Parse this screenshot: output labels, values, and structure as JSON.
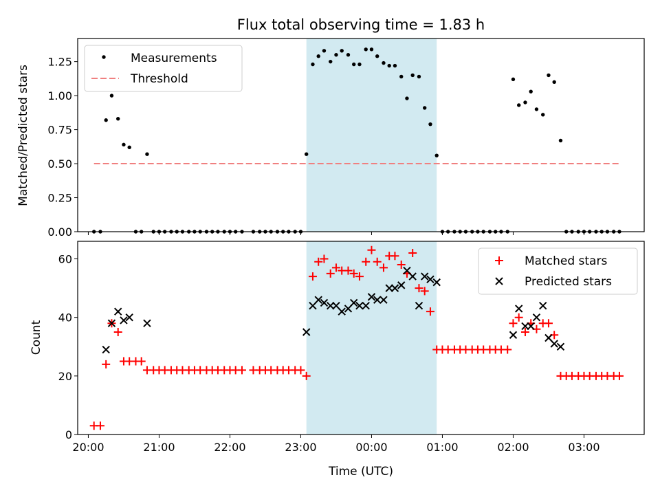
{
  "chart_data": {
    "type": "scatter",
    "title": "Flux total observing time = 1.83 h",
    "xlabel": "Time (UTC)",
    "x_unit": "hours",
    "xlim": [
      19.85,
      27.85
    ],
    "xtick_values": [
      20,
      21,
      22,
      23,
      24,
      25,
      26,
      27
    ],
    "xtick_labels": [
      "20:00",
      "21:00",
      "22:00",
      "23:00",
      "00:00",
      "01:00",
      "02:00",
      "03:00"
    ],
    "highlight_band": [
      23.08,
      24.92
    ],
    "colors": {
      "measurements": "#000000",
      "threshold": "#f08080",
      "matched": "#ff0000",
      "predicted": "#000000",
      "band": "#add8e6"
    },
    "top_panel": {
      "ylabel": "Matched/Predicted stars",
      "ylim": [
        0,
        1.42
      ],
      "ytick_values": [
        0,
        0.25,
        0.5,
        0.75,
        1.0,
        1.25
      ],
      "ytick_labels": [
        "0.00",
        "0.25",
        "0.50",
        "0.75",
        "1.00",
        "1.25"
      ],
      "legend": [
        "Measurements",
        "Threshold"
      ],
      "legend_position": "top-left",
      "threshold": {
        "value": 0.5,
        "x_start": 20.08,
        "x_end": 27.52
      },
      "measurements": [
        [
          20.08,
          0
        ],
        [
          20.17,
          0
        ],
        [
          20.25,
          0.82
        ],
        [
          20.33,
          1.0
        ],
        [
          20.42,
          0.83
        ],
        [
          20.5,
          0.64
        ],
        [
          20.58,
          0.62
        ],
        [
          20.67,
          0
        ],
        [
          20.75,
          0
        ],
        [
          20.83,
          0.57
        ],
        [
          20.92,
          0
        ],
        [
          21.0,
          0
        ],
        [
          21.08,
          0
        ],
        [
          21.17,
          0
        ],
        [
          21.25,
          0
        ],
        [
          21.33,
          0
        ],
        [
          21.42,
          0
        ],
        [
          21.5,
          0
        ],
        [
          21.58,
          0
        ],
        [
          21.67,
          0
        ],
        [
          21.75,
          0
        ],
        [
          21.83,
          0
        ],
        [
          21.92,
          0
        ],
        [
          22.0,
          0
        ],
        [
          22.08,
          0
        ],
        [
          22.17,
          0
        ],
        [
          22.33,
          0
        ],
        [
          22.42,
          0
        ],
        [
          22.5,
          0
        ],
        [
          22.58,
          0
        ],
        [
          22.67,
          0
        ],
        [
          22.75,
          0
        ],
        [
          22.83,
          0
        ],
        [
          22.92,
          0
        ],
        [
          23.0,
          0
        ],
        [
          23.08,
          0.57
        ],
        [
          23.17,
          1.23
        ],
        [
          23.25,
          1.29
        ],
        [
          23.33,
          1.33
        ],
        [
          23.42,
          1.25
        ],
        [
          23.5,
          1.3
        ],
        [
          23.58,
          1.33
        ],
        [
          23.67,
          1.3
        ],
        [
          23.75,
          1.23
        ],
        [
          23.83,
          1.23
        ],
        [
          23.92,
          1.34
        ],
        [
          24.0,
          1.34
        ],
        [
          24.08,
          1.29
        ],
        [
          24.17,
          1.24
        ],
        [
          24.25,
          1.22
        ],
        [
          24.33,
          1.22
        ],
        [
          24.42,
          1.14
        ],
        [
          24.5,
          0.98
        ],
        [
          24.58,
          1.15
        ],
        [
          24.67,
          1.14
        ],
        [
          24.75,
          0.91
        ],
        [
          24.83,
          0.79
        ],
        [
          24.92,
          0.56
        ],
        [
          25.0,
          0
        ],
        [
          25.08,
          0
        ],
        [
          25.17,
          0
        ],
        [
          25.25,
          0
        ],
        [
          25.33,
          0
        ],
        [
          25.42,
          0
        ],
        [
          25.5,
          0
        ],
        [
          25.58,
          0
        ],
        [
          25.67,
          0
        ],
        [
          25.75,
          0
        ],
        [
          25.83,
          0
        ],
        [
          25.92,
          0
        ],
        [
          26.0,
          1.12
        ],
        [
          26.08,
          0.93
        ],
        [
          26.17,
          0.95
        ],
        [
          26.25,
          1.03
        ],
        [
          26.33,
          0.9
        ],
        [
          26.42,
          0.86
        ],
        [
          26.5,
          1.15
        ],
        [
          26.58,
          1.1
        ],
        [
          26.67,
          0.67
        ],
        [
          26.75,
          0
        ],
        [
          26.83,
          0
        ],
        [
          26.92,
          0
        ],
        [
          27.0,
          0
        ],
        [
          27.08,
          0
        ],
        [
          27.17,
          0
        ],
        [
          27.25,
          0
        ],
        [
          27.33,
          0
        ],
        [
          27.42,
          0
        ],
        [
          27.5,
          0
        ]
      ]
    },
    "bottom_panel": {
      "ylabel": "Count",
      "ylim": [
        0,
        66
      ],
      "ytick_values": [
        0,
        20,
        40,
        60
      ],
      "ytick_labels": [
        "0",
        "20",
        "40",
        "60"
      ],
      "legend": [
        "Matched stars",
        "Predicted stars"
      ],
      "legend_position": "top-right",
      "matched": [
        [
          20.08,
          3
        ],
        [
          20.17,
          3
        ],
        [
          20.25,
          24
        ],
        [
          20.33,
          38
        ],
        [
          20.42,
          35
        ],
        [
          20.5,
          25
        ],
        [
          20.58,
          25
        ],
        [
          20.67,
          25
        ],
        [
          20.75,
          25
        ],
        [
          20.83,
          22
        ],
        [
          20.92,
          22
        ],
        [
          21.0,
          22
        ],
        [
          21.08,
          22
        ],
        [
          21.17,
          22
        ],
        [
          21.25,
          22
        ],
        [
          21.33,
          22
        ],
        [
          21.42,
          22
        ],
        [
          21.5,
          22
        ],
        [
          21.58,
          22
        ],
        [
          21.67,
          22
        ],
        [
          21.75,
          22
        ],
        [
          21.83,
          22
        ],
        [
          21.92,
          22
        ],
        [
          22.0,
          22
        ],
        [
          22.08,
          22
        ],
        [
          22.17,
          22
        ],
        [
          22.33,
          22
        ],
        [
          22.42,
          22
        ],
        [
          22.5,
          22
        ],
        [
          22.58,
          22
        ],
        [
          22.67,
          22
        ],
        [
          22.75,
          22
        ],
        [
          22.83,
          22
        ],
        [
          22.92,
          22
        ],
        [
          23.0,
          22
        ],
        [
          23.08,
          20
        ],
        [
          23.17,
          54
        ],
        [
          23.25,
          59
        ],
        [
          23.33,
          60
        ],
        [
          23.42,
          55
        ],
        [
          23.5,
          57
        ],
        [
          23.58,
          56
        ],
        [
          23.67,
          56
        ],
        [
          23.75,
          55
        ],
        [
          23.83,
          54
        ],
        [
          23.92,
          59
        ],
        [
          24.0,
          63
        ],
        [
          24.08,
          59
        ],
        [
          24.17,
          57
        ],
        [
          24.25,
          61
        ],
        [
          24.33,
          61
        ],
        [
          24.42,
          58
        ],
        [
          24.5,
          55
        ],
        [
          24.58,
          62
        ],
        [
          24.67,
          50
        ],
        [
          24.75,
          49
        ],
        [
          24.83,
          42
        ],
        [
          24.92,
          29
        ],
        [
          25.0,
          29
        ],
        [
          25.08,
          29
        ],
        [
          25.17,
          29
        ],
        [
          25.25,
          29
        ],
        [
          25.33,
          29
        ],
        [
          25.42,
          29
        ],
        [
          25.5,
          29
        ],
        [
          25.58,
          29
        ],
        [
          25.67,
          29
        ],
        [
          25.75,
          29
        ],
        [
          25.83,
          29
        ],
        [
          25.92,
          29
        ],
        [
          26.0,
          38
        ],
        [
          26.08,
          40
        ],
        [
          26.17,
          35
        ],
        [
          26.25,
          38
        ],
        [
          26.33,
          36
        ],
        [
          26.42,
          38
        ],
        [
          26.5,
          38
        ],
        [
          26.58,
          34
        ],
        [
          26.67,
          20
        ],
        [
          26.75,
          20
        ],
        [
          26.83,
          20
        ],
        [
          26.92,
          20
        ],
        [
          27.0,
          20
        ],
        [
          27.08,
          20
        ],
        [
          27.17,
          20
        ],
        [
          27.25,
          20
        ],
        [
          27.33,
          20
        ],
        [
          27.42,
          20
        ],
        [
          27.5,
          20
        ]
      ],
      "predicted": [
        [
          20.25,
          29
        ],
        [
          20.33,
          38
        ],
        [
          20.42,
          42
        ],
        [
          20.5,
          39
        ],
        [
          20.58,
          40
        ],
        [
          20.83,
          38
        ],
        [
          23.08,
          35
        ],
        [
          23.17,
          44
        ],
        [
          23.25,
          46
        ],
        [
          23.33,
          45
        ],
        [
          23.42,
          44
        ],
        [
          23.5,
          44
        ],
        [
          23.58,
          42
        ],
        [
          23.67,
          43
        ],
        [
          23.75,
          45
        ],
        [
          23.83,
          44
        ],
        [
          23.92,
          44
        ],
        [
          24.0,
          47
        ],
        [
          24.08,
          46
        ],
        [
          24.17,
          46
        ],
        [
          24.25,
          50
        ],
        [
          24.33,
          50
        ],
        [
          24.42,
          51
        ],
        [
          24.5,
          56
        ],
        [
          24.58,
          54
        ],
        [
          24.67,
          44
        ],
        [
          24.75,
          54
        ],
        [
          24.83,
          53
        ],
        [
          24.92,
          52
        ],
        [
          26.0,
          34
        ],
        [
          26.08,
          43
        ],
        [
          26.17,
          37
        ],
        [
          26.25,
          37
        ],
        [
          26.33,
          40
        ],
        [
          26.42,
          44
        ],
        [
          26.5,
          33
        ],
        [
          26.58,
          31
        ],
        [
          26.67,
          30
        ]
      ]
    }
  }
}
